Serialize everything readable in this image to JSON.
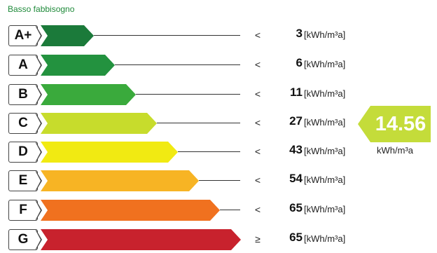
{
  "header": "Basso fabbisogno",
  "chart_data": {
    "type": "energy-rating",
    "classes": [
      {
        "label": "A+",
        "comparator": "<",
        "value": "3",
        "unit": "[kWh/m³a]",
        "color": "#1b7a3a"
      },
      {
        "label": "A",
        "comparator": "<",
        "value": "6",
        "unit": "[kWh/m³a]",
        "color": "#23923f"
      },
      {
        "label": "B",
        "comparator": "<",
        "value": "11",
        "unit": "[kWh/m³a]",
        "color": "#3aaa3c"
      },
      {
        "label": "C",
        "comparator": "<",
        "value": "27",
        "unit": "[kWh/m³a]",
        "color": "#c7dc2c"
      },
      {
        "label": "D",
        "comparator": "<",
        "value": "43",
        "unit": "[kWh/m³a]",
        "color": "#f1ea12"
      },
      {
        "label": "E",
        "comparator": "<",
        "value": "54",
        "unit": "[kWh/m³a]",
        "color": "#f7b424"
      },
      {
        "label": "F",
        "comparator": "<",
        "value": "65",
        "unit": "[kWh/m³a]",
        "color": "#f0711f"
      },
      {
        "label": "G",
        "comparator": "≥",
        "value": "65",
        "unit": "[kWh/m³a]",
        "color": "#c8222d"
      }
    ],
    "indicator": {
      "value": "14.56",
      "unit": "kWh/m³a",
      "class": "C",
      "color": "#c4dc3a"
    }
  }
}
